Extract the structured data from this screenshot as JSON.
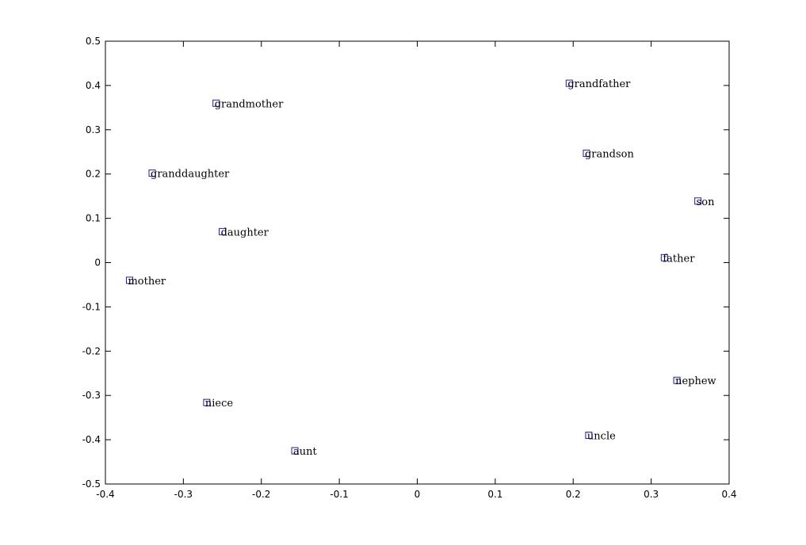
{
  "chart_data": {
    "type": "scatter",
    "xlim": [
      -0.4,
      0.4
    ],
    "ylim": [
      -0.5,
      0.5
    ],
    "xticks": [
      -0.4,
      -0.3,
      -0.2,
      -0.1,
      0,
      0.1,
      0.2,
      0.3,
      0.4
    ],
    "yticks": [
      -0.5,
      -0.4,
      -0.3,
      -0.2,
      -0.1,
      0,
      0.1,
      0.2,
      0.3,
      0.4,
      0.5
    ],
    "xtick_labels": [
      "-0.4",
      "-0.3",
      "-0.2",
      "-0.1",
      "0",
      "0.1",
      "0.2",
      "0.3",
      "0.4"
    ],
    "ytick_labels": [
      "-0.5",
      "-0.4",
      "-0.3",
      "-0.2",
      "-0.1",
      "0",
      "0.1",
      "0.2",
      "0.3",
      "0.4",
      "0.5"
    ],
    "grid": false,
    "marker": "square",
    "marker_color": "#1f1fa8",
    "points": [
      {
        "label": "grandfather",
        "x": 0.195,
        "y": 0.405
      },
      {
        "label": "grandmother",
        "x": -0.258,
        "y": 0.36
      },
      {
        "label": "grandson",
        "x": 0.217,
        "y": 0.247
      },
      {
        "label": "granddaughter",
        "x": -0.34,
        "y": 0.202
      },
      {
        "label": "son",
        "x": 0.36,
        "y": 0.139
      },
      {
        "label": "daughter",
        "x": -0.25,
        "y": 0.07
      },
      {
        "label": "father",
        "x": 0.317,
        "y": 0.011
      },
      {
        "label": "mother",
        "x": -0.369,
        "y": -0.04
      },
      {
        "label": "nephew",
        "x": 0.333,
        "y": -0.266
      },
      {
        "label": "niece",
        "x": -0.27,
        "y": -0.316
      },
      {
        "label": "uncle",
        "x": 0.22,
        "y": -0.39
      },
      {
        "label": "aunt",
        "x": -0.157,
        "y": -0.425
      }
    ]
  }
}
